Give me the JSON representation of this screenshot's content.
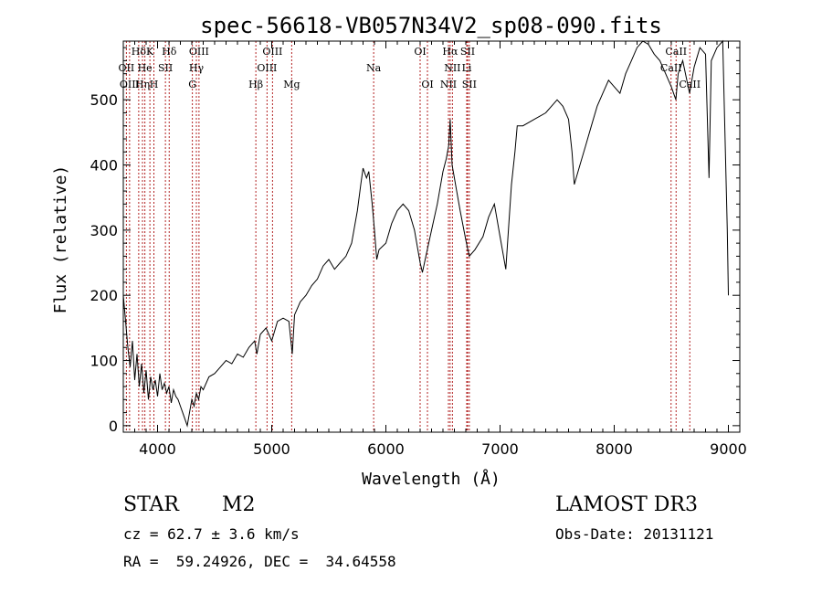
{
  "chart_data": {
    "type": "line",
    "title": "spec-56618-VB057N34V2_sp08-090.fits",
    "xlabel": "Wavelength (Å)",
    "ylabel": "Flux (relative)",
    "xlim": [
      3700,
      9100
    ],
    "ylim": [
      -10,
      590
    ],
    "x_ticks": [
      4000,
      5000,
      6000,
      7000,
      8000,
      9000
    ],
    "y_ticks": [
      0,
      100,
      200,
      300,
      400,
      500
    ],
    "line_color": "#000000",
    "marker_color": "#b22222",
    "grid": false,
    "series": [
      {
        "points": [
          [
            3700,
            200
          ],
          [
            3720,
            160
          ],
          [
            3740,
            120
          ],
          [
            3760,
            90
          ],
          [
            3780,
            130
          ],
          [
            3800,
            70
          ],
          [
            3820,
            110
          ],
          [
            3840,
            60
          ],
          [
            3860,
            95
          ],
          [
            3880,
            50
          ],
          [
            3900,
            85
          ],
          [
            3920,
            40
          ],
          [
            3940,
            75
          ],
          [
            3960,
            55
          ],
          [
            3980,
            70
          ],
          [
            4000,
            45
          ],
          [
            4020,
            80
          ],
          [
            4040,
            55
          ],
          [
            4060,
            65
          ],
          [
            4080,
            50
          ],
          [
            4100,
            60
          ],
          [
            4120,
            35
          ],
          [
            4140,
            55
          ],
          [
            4160,
            45
          ],
          [
            4180,
            40
          ],
          [
            4200,
            30
          ],
          [
            4220,
            20
          ],
          [
            4240,
            10
          ],
          [
            4260,
            0
          ],
          [
            4280,
            20
          ],
          [
            4300,
            40
          ],
          [
            4320,
            30
          ],
          [
            4340,
            50
          ],
          [
            4360,
            40
          ],
          [
            4380,
            60
          ],
          [
            4400,
            55
          ],
          [
            4450,
            75
          ],
          [
            4500,
            80
          ],
          [
            4550,
            90
          ],
          [
            4600,
            100
          ],
          [
            4650,
            95
          ],
          [
            4700,
            110
          ],
          [
            4750,
            105
          ],
          [
            4800,
            120
          ],
          [
            4850,
            130
          ],
          [
            4870,
            110
          ],
          [
            4900,
            140
          ],
          [
            4950,
            150
          ],
          [
            5000,
            130
          ],
          [
            5050,
            160
          ],
          [
            5100,
            165
          ],
          [
            5150,
            160
          ],
          [
            5180,
            110
          ],
          [
            5200,
            170
          ],
          [
            5250,
            190
          ],
          [
            5300,
            200
          ],
          [
            5350,
            215
          ],
          [
            5400,
            225
          ],
          [
            5450,
            245
          ],
          [
            5500,
            255
          ],
          [
            5550,
            240
          ],
          [
            5600,
            250
          ],
          [
            5650,
            260
          ],
          [
            5700,
            280
          ],
          [
            5750,
            330
          ],
          [
            5780,
            370
          ],
          [
            5800,
            395
          ],
          [
            5830,
            380
          ],
          [
            5850,
            390
          ],
          [
            5880,
            340
          ],
          [
            5900,
            300
          ],
          [
            5920,
            255
          ],
          [
            5940,
            270
          ],
          [
            6000,
            280
          ],
          [
            6050,
            310
          ],
          [
            6100,
            330
          ],
          [
            6150,
            340
          ],
          [
            6200,
            330
          ],
          [
            6250,
            300
          ],
          [
            6300,
            250
          ],
          [
            6320,
            235
          ],
          [
            6350,
            260
          ],
          [
            6400,
            300
          ],
          [
            6450,
            340
          ],
          [
            6500,
            390
          ],
          [
            6530,
            410
          ],
          [
            6550,
            430
          ],
          [
            6563,
            470
          ],
          [
            6580,
            400
          ],
          [
            6620,
            360
          ],
          [
            6650,
            330
          ],
          [
            6700,
            285
          ],
          [
            6730,
            260
          ],
          [
            6780,
            270
          ],
          [
            6850,
            290
          ],
          [
            6900,
            320
          ],
          [
            6950,
            340
          ],
          [
            7000,
            290
          ],
          [
            7050,
            240
          ],
          [
            7100,
            370
          ],
          [
            7130,
            420
          ],
          [
            7150,
            460
          ],
          [
            7200,
            460
          ],
          [
            7300,
            470
          ],
          [
            7400,
            480
          ],
          [
            7500,
            500
          ],
          [
            7550,
            490
          ],
          [
            7600,
            470
          ],
          [
            7630,
            420
          ],
          [
            7650,
            370
          ],
          [
            7700,
            400
          ],
          [
            7750,
            430
          ],
          [
            7800,
            460
          ],
          [
            7850,
            490
          ],
          [
            7900,
            510
          ],
          [
            7950,
            530
          ],
          [
            8000,
            520
          ],
          [
            8050,
            510
          ],
          [
            8100,
            540
          ],
          [
            8150,
            560
          ],
          [
            8200,
            580
          ],
          [
            8250,
            590
          ],
          [
            8300,
            585
          ],
          [
            8350,
            570
          ],
          [
            8400,
            560
          ],
          [
            8450,
            540
          ],
          [
            8500,
            520
          ],
          [
            8540,
            500
          ],
          [
            8560,
            540
          ],
          [
            8600,
            560
          ],
          [
            8660,
            510
          ],
          [
            8700,
            550
          ],
          [
            8750,
            580
          ],
          [
            8800,
            570
          ],
          [
            8830,
            380
          ],
          [
            8850,
            560
          ],
          [
            8900,
            580
          ],
          [
            8950,
            590
          ],
          [
            8990,
            300
          ],
          [
            9000,
            200
          ]
        ]
      }
    ],
    "line_markers": [
      {
        "label": "Hδ",
        "wavelength": 3835,
        "row": 1
      },
      {
        "label": "K",
        "wavelength": 3933,
        "row": 1
      },
      {
        "label": "Hδ",
        "wavelength": 4102,
        "row": 1
      },
      {
        "label": "OIII",
        "wavelength": 4363,
        "row": 1
      },
      {
        "label": "OIII",
        "wavelength": 5007,
        "row": 1
      },
      {
        "label": "OI",
        "wavelength": 6300,
        "row": 1
      },
      {
        "label": "Hα",
        "wavelength": 6563,
        "row": 1
      },
      {
        "label": "SII",
        "wavelength": 6716,
        "row": 1
      },
      {
        "label": "CaII",
        "wavelength": 8542,
        "row": 1
      },
      {
        "label": "OII",
        "wavelength": 3727,
        "row": 2
      },
      {
        "label": "He",
        "wavelength": 3889,
        "row": 2
      },
      {
        "label": "SII",
        "wavelength": 4069,
        "row": 2
      },
      {
        "label": "Hγ",
        "wavelength": 4340,
        "row": 2
      },
      {
        "label": "OIII",
        "wavelength": 4959,
        "row": 2
      },
      {
        "label": "Na",
        "wavelength": 5893,
        "row": 2
      },
      {
        "label": "NII",
        "wavelength": 6583,
        "row": 2
      },
      {
        "label": "Li",
        "wavelength": 6708,
        "row": 2
      },
      {
        "label": "CaII",
        "wavelength": 8498,
        "row": 2
      },
      {
        "label": "OIII",
        "wavelength": 3755,
        "row": 3
      },
      {
        "label": "Hη",
        "wavelength": 3868,
        "row": 3
      },
      {
        "label": "H",
        "wavelength": 3968,
        "row": 3
      },
      {
        "label": "G",
        "wavelength": 4305,
        "row": 3
      },
      {
        "label": "Hβ",
        "wavelength": 4861,
        "row": 3
      },
      {
        "label": "Mg",
        "wavelength": 5175,
        "row": 3
      },
      {
        "label": "OI",
        "wavelength": 6364,
        "row": 3
      },
      {
        "label": "NII",
        "wavelength": 6548,
        "row": 3
      },
      {
        "label": "SII",
        "wavelength": 6731,
        "row": 3
      },
      {
        "label": "CaII",
        "wavelength": 8662,
        "row": 3
      }
    ]
  },
  "info": {
    "object_class": "STAR",
    "subclass": "M2",
    "survey": "LAMOST DR3",
    "cz": "cz = 62.7 ± 3.6 km/s",
    "obs_date": "Obs-Date: 20131121",
    "coords": "RA =  59.24926, DEC =  34.64558"
  }
}
